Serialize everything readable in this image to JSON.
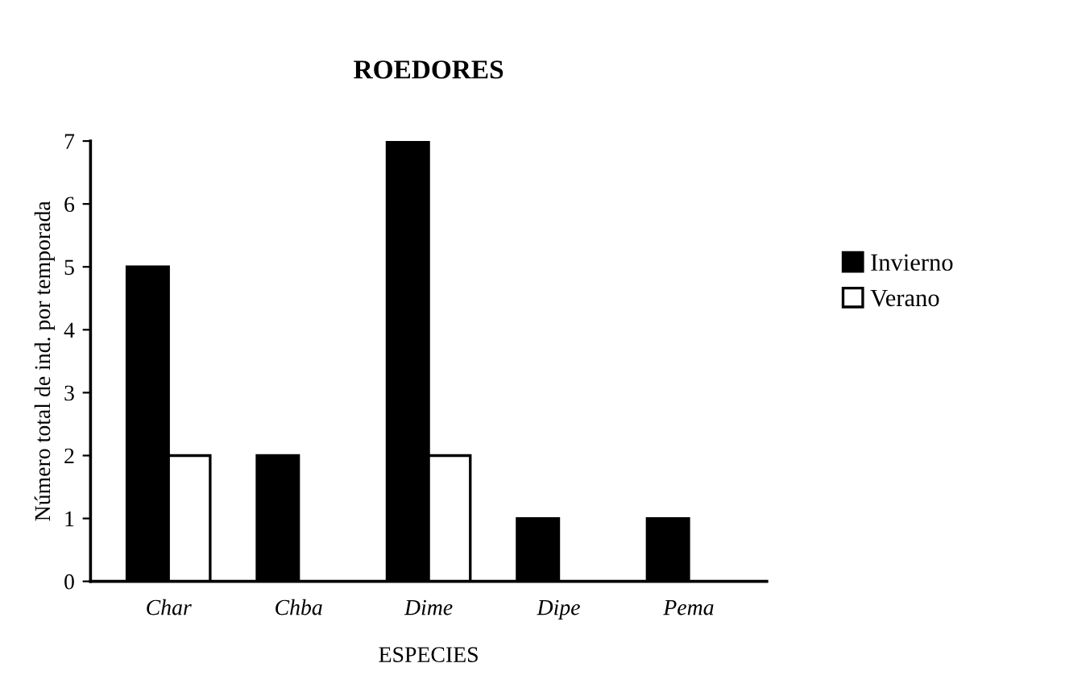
{
  "chart_data": {
    "type": "bar",
    "title": "ROEDORES",
    "xlabel": "ESPECIES",
    "ylabel": "Número total de ind. por temporada",
    "categories": [
      "Char",
      "Chba",
      "Dime",
      "Dipe",
      "Pema"
    ],
    "series": [
      {
        "name": "Invierno",
        "color": "#000000",
        "values": [
          5,
          2,
          7,
          1,
          1
        ]
      },
      {
        "name": "Verano",
        "color": "#ffffff",
        "values": [
          2,
          0,
          2,
          0,
          0
        ]
      }
    ],
    "ylim": [
      0,
      7
    ],
    "yticks": [
      0,
      1,
      2,
      3,
      4,
      5,
      6,
      7
    ],
    "grid": false,
    "legend": "right"
  }
}
